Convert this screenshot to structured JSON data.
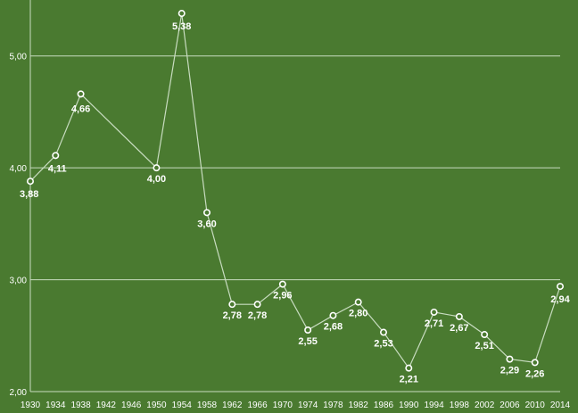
{
  "chart_data": {
    "type": "line",
    "title": "",
    "xlabel": "",
    "ylabel": "",
    "x": [
      "1930",
      "1934",
      "1938",
      "1950",
      "1954",
      "1958",
      "1962",
      "1966",
      "1970",
      "1974",
      "1978",
      "1982",
      "1986",
      "1990",
      "1994",
      "1998",
      "2002",
      "2006",
      "2010",
      "2014"
    ],
    "x_ticks": [
      "1930",
      "1934",
      "1938",
      "1942",
      "1946",
      "1950",
      "1954",
      "1958",
      "1962",
      "1966",
      "1970",
      "1974",
      "1978",
      "1982",
      "1986",
      "1990",
      "1994",
      "1998",
      "2002",
      "2006",
      "2010",
      "2014"
    ],
    "series": [
      {
        "values": [
          3.88,
          4.11,
          4.66,
          4.0,
          5.38,
          3.6,
          2.78,
          2.78,
          2.96,
          2.55,
          2.68,
          2.8,
          2.53,
          2.21,
          2.71,
          2.67,
          2.51,
          2.29,
          2.26,
          2.94
        ],
        "labels": [
          "3,88",
          "4,11",
          "4,66",
          "4,00",
          "5,38",
          "3,60",
          "2,78",
          "2,78",
          "2,96",
          "2,55",
          "2,68",
          "2,80",
          "2,53",
          "2,21",
          "2,71",
          "2,67",
          "2,51",
          "2,29",
          "2,26",
          "2,94"
        ]
      }
    ],
    "ylim": [
      2.0,
      5.5
    ],
    "y_ticks": [
      "2,00",
      "3,00",
      "4,00",
      "5,00"
    ],
    "grid": true,
    "legend": "none",
    "colors": {
      "background": "#4a7a30",
      "line": "#c8dcc0",
      "gridline": "#c8dcc0",
      "marker_fill": "#4a7a30",
      "marker_stroke": "#ffffff",
      "text": "#ffffff"
    }
  }
}
